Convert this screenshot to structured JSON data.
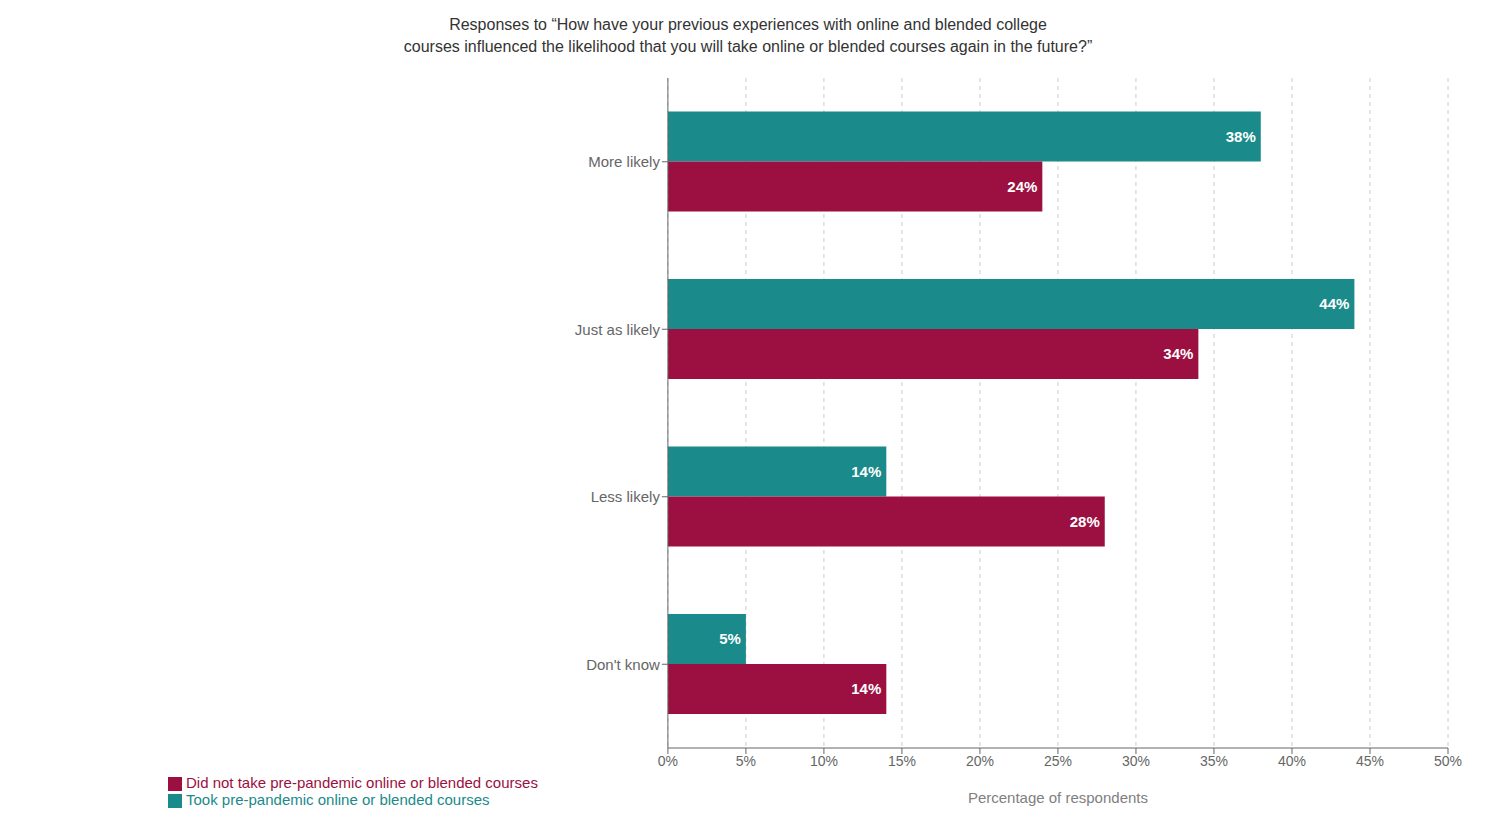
{
  "chart_data": {
    "type": "bar",
    "orientation": "horizontal",
    "title": "Responses to “How have your previous experiences with online and blended college\ncourses influenced the likelihood that you will take online or blended courses again in the future?”",
    "categories": [
      "Don't know",
      "Less likely",
      "Just as likely",
      "More likely"
    ],
    "series": [
      {
        "name": "Took pre-pandemic online or blended courses",
        "color": "#1a8a8a",
        "values": [
          5,
          14,
          44,
          38
        ],
        "value_labels": [
          "5%",
          "14%",
          "44%",
          "38%"
        ]
      },
      {
        "name": "Did not take pre-pandemic online or blended courses",
        "color": "#9b1040",
        "values": [
          14,
          28,
          34,
          24
        ],
        "value_labels": [
          "14%",
          "28%",
          "34%",
          "24%"
        ]
      }
    ],
    "xlabel": "Percentage of respondents",
    "xlim": [
      0,
      50
    ],
    "xticks": [
      {
        "value": 0,
        "label": "0%"
      },
      {
        "value": 5,
        "label": "5%"
      },
      {
        "value": 10,
        "label": "10%"
      },
      {
        "value": 15,
        "label": "15%"
      },
      {
        "value": 20,
        "label": "20%"
      },
      {
        "value": 25,
        "label": "25%"
      },
      {
        "value": 30,
        "label": "30%"
      },
      {
        "value": 35,
        "label": "35%"
      },
      {
        "value": 40,
        "label": "40%"
      },
      {
        "value": 45,
        "label": "45%"
      },
      {
        "value": 50,
        "label": "50%"
      }
    ],
    "grid": true,
    "legend": "bottom",
    "data_labels": true
  }
}
